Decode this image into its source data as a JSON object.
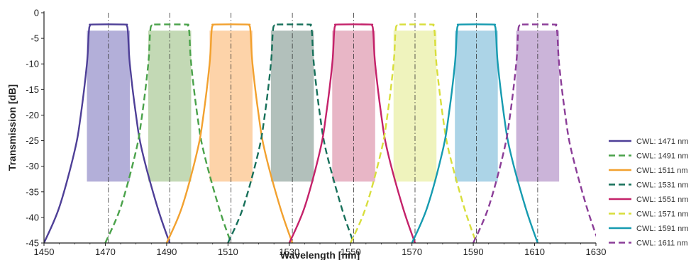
{
  "chart_data": {
    "type": "line",
    "title": "",
    "xlabel": "Wavelength [nm]",
    "ylabel": "Transmission [dB]",
    "xlim": [
      1450,
      1630
    ],
    "ylim": [
      -45,
      0
    ],
    "x_ticks": [
      1450,
      1470,
      1490,
      1510,
      1530,
      1550,
      1570,
      1590,
      1610,
      1630
    ],
    "y_ticks": [
      0,
      -5,
      -10,
      -15,
      -20,
      -25,
      -30,
      -35,
      -40,
      -45
    ],
    "grid": "vertical center lines at each CWL",
    "legend_position": "right",
    "passband_top_db": -2.3,
    "shaded_band_db": [
      -3.5,
      -33
    ],
    "shaded_band_halfwidth_nm": 7,
    "series": [
      {
        "name": "CWL: 1471 nm",
        "cwl": 1471,
        "color": "#4e3f97",
        "dash": "solid",
        "band_color": "#b3afd9",
        "points": [
          [
            1450,
            -45
          ],
          [
            1455,
            -38
          ],
          [
            1460,
            -27
          ],
          [
            1462,
            -20
          ],
          [
            1464,
            -10
          ],
          [
            1464.6,
            -4
          ],
          [
            1465,
            -2.5
          ],
          [
            1466,
            -2.3
          ],
          [
            1476,
            -2.3
          ],
          [
            1477,
            -2.5
          ],
          [
            1477.4,
            -4
          ],
          [
            1478,
            -10
          ],
          [
            1480,
            -20
          ],
          [
            1482,
            -27
          ],
          [
            1487,
            -38
          ],
          [
            1491,
            -45
          ]
        ]
      },
      {
        "name": "CWL: 1491 nm",
        "cwl": 1491,
        "color": "#4aa24a",
        "dash": "dashed",
        "band_color": "#c3d9b5",
        "points": [
          [
            1470,
            -45
          ],
          [
            1475,
            -38
          ],
          [
            1480,
            -27
          ],
          [
            1482,
            -20
          ],
          [
            1484,
            -10
          ],
          [
            1484.6,
            -4
          ],
          [
            1485,
            -2.5
          ],
          [
            1486,
            -2.3
          ],
          [
            1496,
            -2.3
          ],
          [
            1497,
            -2.5
          ],
          [
            1497.4,
            -4
          ],
          [
            1498,
            -10
          ],
          [
            1500,
            -20
          ],
          [
            1502,
            -27
          ],
          [
            1507,
            -38
          ],
          [
            1511,
            -45
          ]
        ]
      },
      {
        "name": "CWL: 1511 nm",
        "cwl": 1511,
        "color": "#f2a12f",
        "dash": "solid",
        "band_color": "#fdd3a9",
        "points": [
          [
            1490,
            -45
          ],
          [
            1495,
            -38
          ],
          [
            1500,
            -27
          ],
          [
            1502,
            -20
          ],
          [
            1504,
            -10
          ],
          [
            1504.6,
            -4
          ],
          [
            1505,
            -2.5
          ],
          [
            1506,
            -2.3
          ],
          [
            1516,
            -2.3
          ],
          [
            1517,
            -2.5
          ],
          [
            1517.4,
            -4
          ],
          [
            1518,
            -10
          ],
          [
            1520,
            -20
          ],
          [
            1522,
            -27
          ],
          [
            1527,
            -38
          ],
          [
            1531,
            -45
          ]
        ]
      },
      {
        "name": "CWL: 1531 nm",
        "cwl": 1531,
        "color": "#17705a",
        "dash": "dashed",
        "band_color": "#b2c0bb",
        "points": [
          [
            1510,
            -45
          ],
          [
            1515,
            -38
          ],
          [
            1520,
            -27
          ],
          [
            1522,
            -20
          ],
          [
            1524,
            -10
          ],
          [
            1524.6,
            -4
          ],
          [
            1525,
            -2.5
          ],
          [
            1526,
            -2.3
          ],
          [
            1536,
            -2.3
          ],
          [
            1537,
            -2.5
          ],
          [
            1537.4,
            -4
          ],
          [
            1538,
            -10
          ],
          [
            1540,
            -20
          ],
          [
            1542,
            -27
          ],
          [
            1547,
            -38
          ],
          [
            1551,
            -45
          ]
        ]
      },
      {
        "name": "CWL: 1551 nm",
        "cwl": 1551,
        "color": "#c4226a",
        "dash": "solid",
        "band_color": "#e8b6c6",
        "points": [
          [
            1530,
            -45
          ],
          [
            1535,
            -38
          ],
          [
            1540,
            -27
          ],
          [
            1542,
            -20
          ],
          [
            1544,
            -10
          ],
          [
            1544.6,
            -4
          ],
          [
            1545,
            -2.5
          ],
          [
            1546,
            -2.3
          ],
          [
            1556,
            -2.3
          ],
          [
            1557,
            -2.5
          ],
          [
            1557.4,
            -4
          ],
          [
            1558,
            -10
          ],
          [
            1560,
            -20
          ],
          [
            1562,
            -27
          ],
          [
            1567,
            -38
          ],
          [
            1571,
            -45
          ]
        ]
      },
      {
        "name": "CWL: 1571 nm",
        "cwl": 1571,
        "color": "#d8de3c",
        "dash": "dashed",
        "band_color": "#eff3bd",
        "points": [
          [
            1550,
            -45
          ],
          [
            1555,
            -38
          ],
          [
            1560,
            -27
          ],
          [
            1562,
            -20
          ],
          [
            1564,
            -10
          ],
          [
            1564.6,
            -4
          ],
          [
            1565,
            -2.5
          ],
          [
            1566,
            -2.3
          ],
          [
            1576,
            -2.3
          ],
          [
            1577,
            -2.5
          ],
          [
            1577.4,
            -4
          ],
          [
            1578,
            -10
          ],
          [
            1580,
            -20
          ],
          [
            1582,
            -27
          ],
          [
            1587,
            -38
          ],
          [
            1591,
            -45
          ]
        ]
      },
      {
        "name": "CWL: 1591 nm",
        "cwl": 1591,
        "color": "#169bb0",
        "dash": "solid",
        "band_color": "#acd4e7",
        "points": [
          [
            1570,
            -45
          ],
          [
            1575,
            -38
          ],
          [
            1580,
            -27
          ],
          [
            1582,
            -20
          ],
          [
            1584,
            -10
          ],
          [
            1584.6,
            -4
          ],
          [
            1585,
            -2.5
          ],
          [
            1586,
            -2.3
          ],
          [
            1596,
            -2.3
          ],
          [
            1597,
            -2.5
          ],
          [
            1597.4,
            -4
          ],
          [
            1598,
            -10
          ],
          [
            1600,
            -20
          ],
          [
            1602,
            -27
          ],
          [
            1607,
            -38
          ],
          [
            1611,
            -45
          ]
        ]
      },
      {
        "name": "CWL: 1611 nm",
        "cwl": 1611,
        "color": "#8b3d98",
        "dash": "dashed",
        "band_color": "#cbb4d9",
        "points": [
          [
            1590,
            -45
          ],
          [
            1595,
            -38
          ],
          [
            1600,
            -27
          ],
          [
            1602,
            -20
          ],
          [
            1604,
            -10
          ],
          [
            1604.6,
            -4
          ],
          [
            1605,
            -2.5
          ],
          [
            1606,
            -2.3
          ],
          [
            1616,
            -2.3
          ],
          [
            1617,
            -2.5
          ],
          [
            1617.4,
            -4
          ],
          [
            1618,
            -10
          ],
          [
            1620,
            -20
          ],
          [
            1622,
            -27
          ],
          [
            1627,
            -38
          ],
          [
            1631,
            -45
          ]
        ]
      }
    ]
  }
}
